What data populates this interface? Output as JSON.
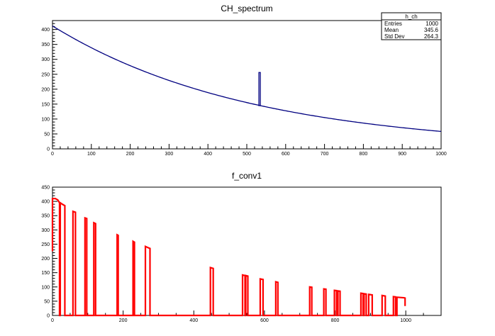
{
  "chart_data": [
    {
      "type": "line",
      "title": "CH_spectrum",
      "xlabel": "",
      "ylabel": "",
      "xlim": [
        0,
        1000
      ],
      "ylim": [
        0,
        430
      ],
      "x_ticks": [
        0,
        100,
        200,
        300,
        400,
        500,
        600,
        700,
        800,
        900,
        1000
      ],
      "y_ticks": [
        0,
        50,
        100,
        150,
        200,
        250,
        300,
        350,
        400
      ],
      "series": [
        {
          "color": "#000080",
          "model": {
            "kind": "exponential",
            "a": 412,
            "b": 0.001953,
            "x_start": 0,
            "x_end": 1000
          },
          "points": [
            [
              0,
              412
            ],
            [
              100,
              338
            ],
            [
              200,
              275
            ],
            [
              300,
              224
            ],
            [
              400,
              183
            ],
            [
              500,
              150
            ],
            [
              530,
              141
            ],
            [
              600,
              128
            ],
            [
              700,
              103
            ],
            [
              800,
              86
            ],
            [
              900,
              71
            ],
            [
              1000,
              59
            ]
          ],
          "spike": {
            "x": 533,
            "y": 256,
            "base": 143
          }
        }
      ],
      "stats_box": {
        "title": "h_ch",
        "rows": [
          {
            "label": "Entries",
            "value": "1000"
          },
          {
            "label": "Mean",
            "value": "345.6"
          },
          {
            "label": "Std Dev",
            "value": "264.3"
          }
        ]
      }
    },
    {
      "type": "line",
      "title": "f_conv1",
      "xlabel": "",
      "ylabel": "",
      "xlim": [
        0,
        1100
      ],
      "ylim": [
        0,
        450
      ],
      "x_ticks": [
        0,
        200,
        400,
        600,
        800,
        1000
      ],
      "y_ticks": [
        0,
        50,
        100,
        150,
        200,
        250,
        300,
        350,
        400,
        450
      ],
      "series": [
        {
          "color": "#ff0000",
          "points": [
            [
              0,
              225
            ],
            [
              0,
              410
            ],
            [
              8,
              410
            ],
            [
              15,
              405
            ],
            [
              20,
              395
            ],
            [
              20,
              0
            ],
            [
              22,
              0
            ],
            [
              22,
              395
            ],
            [
              28,
              390
            ],
            [
              35,
              385
            ],
            [
              35,
              0
            ],
            [
              58,
              0
            ],
            [
              58,
              365
            ],
            [
              65,
              362
            ],
            [
              65,
              0
            ],
            [
              92,
              0
            ],
            [
              92,
              342
            ],
            [
              97,
              340
            ],
            [
              97,
              0
            ],
            [
              117,
              0
            ],
            [
              117,
              325
            ],
            [
              122,
              322
            ],
            [
              122,
              0
            ],
            [
              183,
              0
            ],
            [
              183,
              283
            ],
            [
              186,
              281
            ],
            [
              186,
              0
            ],
            [
              228,
              0
            ],
            [
              228,
              260
            ],
            [
              232,
              257
            ],
            [
              232,
              0
            ],
            [
              263,
              0
            ],
            [
              263,
              242
            ],
            [
              270,
              238
            ],
            [
              276,
              235
            ],
            [
              276,
              0
            ],
            [
              447,
              0
            ],
            [
              447,
              168
            ],
            [
              455,
              165
            ],
            [
              455,
              0
            ],
            [
              538,
              0
            ],
            [
              538,
              142
            ],
            [
              545,
              140
            ],
            [
              545,
              0
            ],
            [
              547,
              0
            ],
            [
              547,
              140
            ],
            [
              553,
              138
            ],
            [
              553,
              0
            ],
            [
              588,
              0
            ],
            [
              588,
              128
            ],
            [
              596,
              126
            ],
            [
              596,
              0
            ],
            [
              632,
              0
            ],
            [
              632,
              118
            ],
            [
              638,
              116
            ],
            [
              638,
              0
            ],
            [
              728,
              0
            ],
            [
              728,
              100
            ],
            [
              734,
              99
            ],
            [
              734,
              0
            ],
            [
              768,
              0
            ],
            [
              768,
              93
            ],
            [
              774,
              92
            ],
            [
              774,
              0
            ],
            [
              798,
              0
            ],
            [
              798,
              88
            ],
            [
              804,
              87
            ],
            [
              804,
              0
            ],
            [
              808,
              0
            ],
            [
              808,
              86
            ],
            [
              814,
              85
            ],
            [
              814,
              0
            ],
            [
              873,
              0
            ],
            [
              873,
              78
            ],
            [
              879,
              77
            ],
            [
              879,
              0
            ],
            [
              882,
              0
            ],
            [
              882,
              76
            ],
            [
              888,
              75
            ],
            [
              888,
              0
            ],
            [
              895,
              0
            ],
            [
              895,
              74
            ],
            [
              905,
              72
            ],
            [
              905,
              0
            ],
            [
              933,
              0
            ],
            [
              933,
              70
            ],
            [
              942,
              68
            ],
            [
              942,
              0
            ],
            [
              965,
              0
            ],
            [
              965,
              66
            ],
            [
              971,
              65
            ],
            [
              971,
              0
            ],
            [
              975,
              0
            ],
            [
              975,
              64
            ],
            [
              985,
              63
            ],
            [
              995,
              62
            ],
            [
              998,
              61
            ],
            [
              998,
              33
            ]
          ]
        }
      ]
    }
  ]
}
